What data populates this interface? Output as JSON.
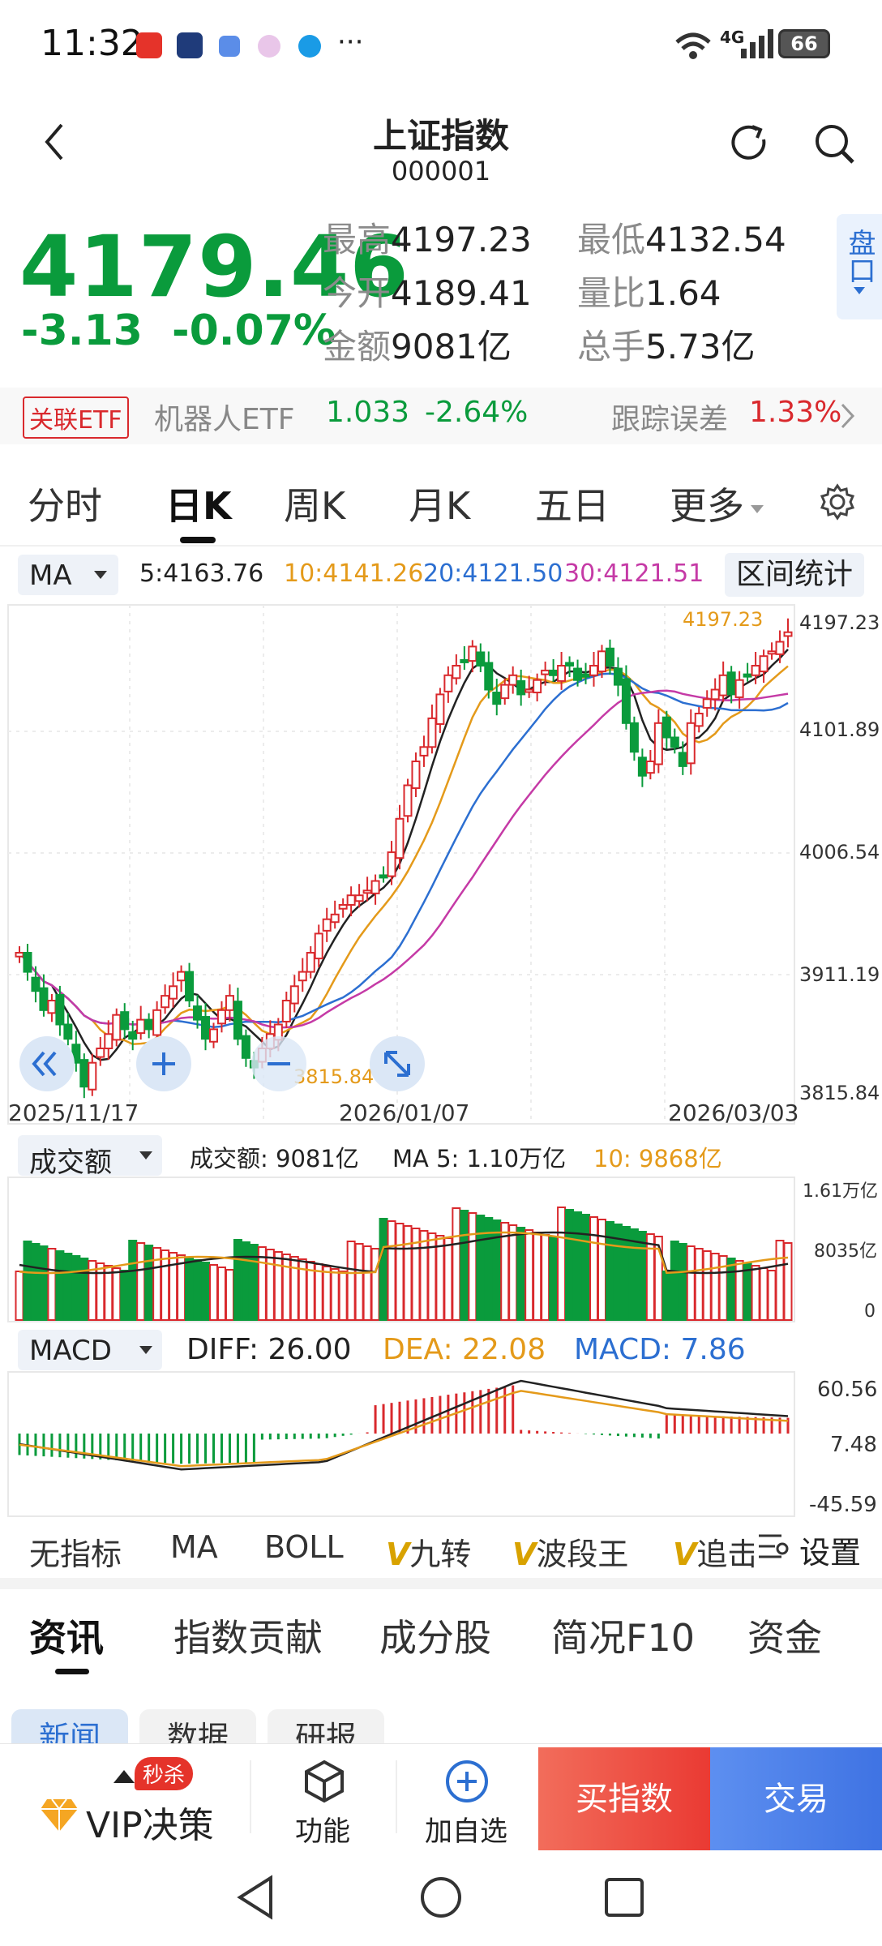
{
  "status": {
    "time": "11:32",
    "network": "4G",
    "battery": "66",
    "more": "···"
  },
  "header": {
    "title": "上证指数",
    "code": "000001"
  },
  "quote": {
    "price": "4179.46",
    "change": "-3.13",
    "change_pct": "-0.07%",
    "high_label": "最高",
    "high": "4197.23",
    "low_label": "最低",
    "low": "4132.54",
    "open_label": "今开",
    "open": "4189.41",
    "ratio_label": "量比",
    "ratio": "1.64",
    "amount_label": "金额",
    "amount": "9081亿",
    "hands_label": "总手",
    "hands": "5.73亿",
    "pankou": "盘口"
  },
  "etf": {
    "tag": "关联ETF",
    "name": "机器人ETF",
    "price": "1.033",
    "pct": "-2.64%",
    "track_label": "跟踪误差",
    "track": "1.33%"
  },
  "period_tabs": [
    "分时",
    "日K",
    "周K",
    "月K",
    "五日",
    "更多"
  ],
  "active_period": "日K",
  "ma_bar": {
    "selector": "MA",
    "ma5": "5:4163.76",
    "ma10": "10:4141.26",
    "ma20": "20:4121.50",
    "ma30": "30:4121.51",
    "interval": "区间统计"
  },
  "kline": {
    "y_labels": [
      "4197.23",
      "4101.89",
      "4006.54",
      "3911.19",
      "3815.84"
    ],
    "x_labels": [
      "2025/11/17",
      "2026/01/07",
      "2026/03/03"
    ],
    "high_mark": "4197.23",
    "low_mark": "3815.84"
  },
  "volume": {
    "selector": "成交额",
    "amount": "成交额: 9081亿",
    "ma5": "MA 5: 1.10万亿",
    "ma10": "10: 9868亿",
    "y_labels": [
      "1.61万亿",
      "8035亿",
      "0"
    ]
  },
  "macd": {
    "selector": "MACD",
    "diff": "DIFF: 26.00",
    "dea": "DEA: 22.08",
    "macd": "MACD: 7.86",
    "y_labels": [
      "60.56",
      "7.48",
      "-45.59"
    ]
  },
  "indicators": [
    "无指标",
    "MA",
    "BOLL",
    "九转",
    "波段王",
    "追击"
  ],
  "indicator_settings": "设置",
  "info_tabs": [
    "资讯",
    "指数贡献",
    "成分股",
    "简况F10",
    "资金"
  ],
  "sub_tabs": [
    "新闻",
    "数据",
    "研报"
  ],
  "bottom": {
    "vip_badge": "秒杀",
    "vip": "VIP决策",
    "func": "功能",
    "add": "加自选",
    "buy": "买指数",
    "trade": "交易"
  },
  "colors": {
    "up": "#d9292d",
    "down": "#0a9b3c",
    "ma5": "#222222",
    "ma10": "#e49a1a",
    "ma20": "#2c6fd1",
    "ma30": "#c53aa6"
  },
  "icons": [
    "back-icon",
    "refresh-icon",
    "search-icon",
    "gear-icon",
    "collapse-icon",
    "zoom-in-icon",
    "zoom-out-icon",
    "fullscreen-icon",
    "diamond-icon",
    "cube-icon",
    "add-circle-icon",
    "nav-back-icon",
    "nav-home-icon",
    "nav-recent-icon"
  ]
}
